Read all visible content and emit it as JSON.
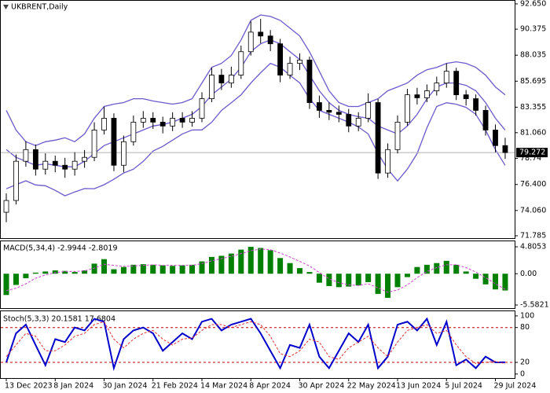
{
  "chart_data": [
    {
      "type": "candlestick",
      "title": "UKBRENT,Daily",
      "categories": [
        "13 Dec 2023",
        null,
        null,
        null,
        null,
        "8 Jan 2024",
        null,
        null,
        null,
        null,
        "30 Jan 2024",
        null,
        null,
        null,
        null,
        "21 Feb 2024",
        null,
        null,
        null,
        null,
        "14 Mar 2024",
        null,
        null,
        null,
        null,
        "8 Apr 2024",
        null,
        null,
        null,
        null,
        "30 Apr 2024",
        null,
        null,
        null,
        null,
        "22 May 2024",
        null,
        null,
        null,
        null,
        "13 Jun 2024",
        null,
        null,
        null,
        null,
        "5 Jul 2024",
        null,
        null,
        null,
        null,
        "29 Jul 2024",
        null
      ],
      "open": [
        73.9,
        74.96,
        78.49,
        79.54,
        77.78,
        78.49,
        78.13,
        77.78,
        78.49,
        78.84,
        81.3,
        82.36,
        78.13,
        80.25,
        82.01,
        82.36,
        82.01,
        81.66,
        82.36,
        82.01,
        82.36,
        84.12,
        86.24,
        85.53,
        86.24,
        88.35,
        90.11,
        89.76,
        89.06,
        86.24,
        87.3,
        87.6,
        83.77,
        83.07,
        82.9,
        82.71,
        81.66,
        82.36,
        83.77,
        77.43,
        79.54,
        82.01,
        84.47,
        84.2,
        84.83,
        85.53,
        86.59,
        84.47,
        84.12,
        83.07,
        81.3,
        79.9
      ],
      "high": [
        75.6,
        79.1,
        80.3,
        80.0,
        79.2,
        79.0,
        78.8,
        79.3,
        79.5,
        82.0,
        83.4,
        82.8,
        80.8,
        82.6,
        83.0,
        82.9,
        82.5,
        82.9,
        82.9,
        83.0,
        84.7,
        86.9,
        86.8,
        87.0,
        88.9,
        91.1,
        91.3,
        90.3,
        89.5,
        87.9,
        88.2,
        87.9,
        84.4,
        83.8,
        83.5,
        83.2,
        82.9,
        84.6,
        84.1,
        80.1,
        82.6,
        85.0,
        85.1,
        85.4,
        86.1,
        87.3,
        86.9,
        84.9,
        84.5,
        83.5,
        81.8,
        80.6
      ],
      "low": [
        73.0,
        74.6,
        78.0,
        77.2,
        77.3,
        77.5,
        77.0,
        77.2,
        77.9,
        78.5,
        80.9,
        77.6,
        77.5,
        79.9,
        81.5,
        81.4,
        81.0,
        81.2,
        81.5,
        81.6,
        82.0,
        83.8,
        84.9,
        85.1,
        85.9,
        88.0,
        89.1,
        88.4,
        85.6,
        85.9,
        86.7,
        83.2,
        82.4,
        82.2,
        82.0,
        81.1,
        81.2,
        82.0,
        76.9,
        77.0,
        79.2,
        81.7,
        83.6,
        83.8,
        84.4,
        85.1,
        84.0,
        83.5,
        82.6,
        80.8,
        79.3,
        78.7
      ],
      "close": [
        74.96,
        78.49,
        79.54,
        77.78,
        78.49,
        78.13,
        77.78,
        78.49,
        78.84,
        81.3,
        82.36,
        78.13,
        80.25,
        82.01,
        82.36,
        82.01,
        81.66,
        82.36,
        82.01,
        82.36,
        84.12,
        86.24,
        85.53,
        86.24,
        88.35,
        90.11,
        89.76,
        89.06,
        86.24,
        87.3,
        87.6,
        83.77,
        83.07,
        82.9,
        82.71,
        81.66,
        82.36,
        83.77,
        77.43,
        79.54,
        82.01,
        84.47,
        84.2,
        84.83,
        85.53,
        86.59,
        84.47,
        84.12,
        83.07,
        81.3,
        79.9,
        79.272
      ],
      "up_color": "#ffffff",
      "down_color": "#000000",
      "overlays": [
        {
          "color": "#6a5acd",
          "values": [
            83.07,
            81.3,
            80.25,
            79.9,
            80.25,
            80.39,
            80.6,
            80.25,
            80.95,
            82.36,
            83.42,
            83.63,
            83.77,
            84.12,
            84.12,
            83.91,
            83.77,
            83.63,
            83.77,
            84.12,
            85.53,
            86.94,
            87.3,
            88.0,
            89.41,
            91.17,
            91.66,
            91.52,
            91.17,
            90.47,
            89.76,
            88.35,
            86.59,
            84.83,
            83.77,
            83.42,
            83.42,
            83.77,
            84.12,
            84.83,
            85.18,
            85.53,
            86.24,
            86.73,
            86.94,
            87.3,
            87.44,
            87.3,
            86.94,
            86.24,
            85.18,
            84.47
          ]
        },
        {
          "color": "#6a5acd",
          "values": [
            79.54,
            78.84,
            78.49,
            78.13,
            78.27,
            78.13,
            77.99,
            77.99,
            78.49,
            79.19,
            79.9,
            80.25,
            80.6,
            80.95,
            81.3,
            81.66,
            81.8,
            82.01,
            82.36,
            82.71,
            83.42,
            84.47,
            85.18,
            85.88,
            86.94,
            88.35,
            89.06,
            89.41,
            89.06,
            88.35,
            87.65,
            86.24,
            84.83,
            83.77,
            83.07,
            82.71,
            82.5,
            82.36,
            81.66,
            81.3,
            80.95,
            81.66,
            82.71,
            84.12,
            85.18,
            85.53,
            85.53,
            85.32,
            84.83,
            83.77,
            82.36,
            81.3
          ]
        },
        {
          "color": "#6a5acd",
          "values": [
            76.01,
            76.38,
            76.73,
            76.36,
            76.29,
            75.87,
            75.38,
            75.73,
            76.03,
            76.02,
            76.38,
            76.87,
            77.43,
            77.78,
            78.48,
            79.41,
            79.83,
            80.39,
            80.95,
            81.3,
            81.31,
            82.0,
            83.06,
            83.76,
            84.47,
            85.53,
            86.46,
            87.3,
            86.95,
            86.23,
            85.54,
            84.13,
            83.07,
            82.71,
            82.37,
            82.0,
            81.58,
            80.95,
            79.2,
            77.77,
            76.72,
            77.79,
            79.18,
            81.51,
            83.42,
            83.76,
            83.62,
            83.34,
            82.72,
            81.3,
            79.54,
            78.13
          ]
        }
      ],
      "last_price": 79.272,
      "ylim": [
        71.57,
        92.93
      ],
      "yticks": [
        {
          "value": 92.65,
          "label": "92.650"
        },
        90.375,
        88.035,
        85.695,
        83.355,
        {
          "value": 81.06,
          "label": "81.060"
        },
        78.74,
        {
          "value": 76.4,
          "label": "76.400"
        },
        {
          "value": 74.06,
          "label": "74.060"
        },
        71.785
      ]
    },
    {
      "type": "macd",
      "title": "MACD(5,34,4) -2.9944 -2.8019",
      "color": "#008000",
      "values": [
        -3.8,
        -2.0,
        -0.8,
        0.2,
        0.4,
        0.6,
        0.5,
        0.3,
        0.6,
        1.8,
        2.6,
        0.8,
        1.2,
        1.6,
        1.7,
        1.6,
        1.5,
        1.4,
        1.5,
        1.6,
        2.2,
        3.0,
        3.2,
        3.6,
        4.3,
        4.8,
        4.6,
        4.2,
        2.8,
        1.9,
        1.0,
        0.3,
        -1.6,
        -2.2,
        -2.4,
        -2.3,
        -2.1,
        -1.5,
        -3.6,
        -4.3,
        -2.4,
        -0.6,
        1.2,
        1.6,
        1.9,
        2.3,
        1.6,
        0.4,
        -0.9,
        -1.9,
        -2.8,
        -2.9944
      ],
      "signal": {
        "color": "#d040d0",
        "values": [
          -3.0,
          -2.6,
          -1.8,
          -0.8,
          -0.2,
          0.2,
          0.4,
          0.4,
          0.5,
          1.0,
          1.7,
          1.5,
          1.3,
          1.4,
          1.5,
          1.6,
          1.5,
          1.5,
          1.5,
          1.5,
          1.8,
          2.3,
          2.7,
          3.1,
          3.6,
          4.1,
          4.4,
          4.3,
          3.7,
          3.0,
          2.2,
          1.4,
          0.2,
          -0.9,
          -1.6,
          -2.0,
          -2.1,
          -1.8,
          -2.5,
          -3.3,
          -2.9,
          -2.0,
          -0.7,
          0.4,
          1.1,
          1.6,
          1.6,
          1.1,
          0.3,
          -0.7,
          -1.8,
          -2.8019
        ]
      },
      "ylim": [
        -6.14,
        5.79
      ],
      "yticks": [
        4.8053,
        {
          "value": 0,
          "label": "0.00"
        },
        -5.5821
      ]
    },
    {
      "type": "line",
      "title": "Stoch(5,3,3) 20.1581 17.6804",
      "series": [
        {
          "color": "#0000cc",
          "values": [
            20,
            70,
            85,
            50,
            15,
            60,
            55,
            80,
            75,
            95,
            90,
            10,
            60,
            75,
            80,
            70,
            40,
            55,
            70,
            60,
            90,
            95,
            75,
            85,
            90,
            95,
            70,
            40,
            10,
            50,
            45,
            85,
            30,
            10,
            40,
            70,
            55,
            85,
            10,
            30,
            85,
            90,
            75,
            95,
            50,
            90,
            15,
            25,
            10,
            30,
            20,
            20.1581
          ]
        },
        {
          "color": "#e03030",
          "dash": true,
          "values": [
            30,
            50,
            70,
            65,
            40,
            40,
            50,
            65,
            70,
            85,
            90,
            60,
            45,
            60,
            70,
            75,
            60,
            50,
            60,
            62,
            75,
            85,
            85,
            80,
            85,
            90,
            85,
            65,
            35,
            30,
            40,
            60,
            55,
            30,
            25,
            45,
            55,
            65,
            45,
            30,
            55,
            75,
            80,
            85,
            70,
            75,
            50,
            30,
            18,
            20,
            22,
            17.6804
          ]
        }
      ],
      "levels": [
        20,
        80
      ],
      "level_color": "#c00000",
      "ylim": [
        -7,
        108
      ],
      "yticks": [
        0,
        20,
        80,
        100
      ]
    }
  ]
}
